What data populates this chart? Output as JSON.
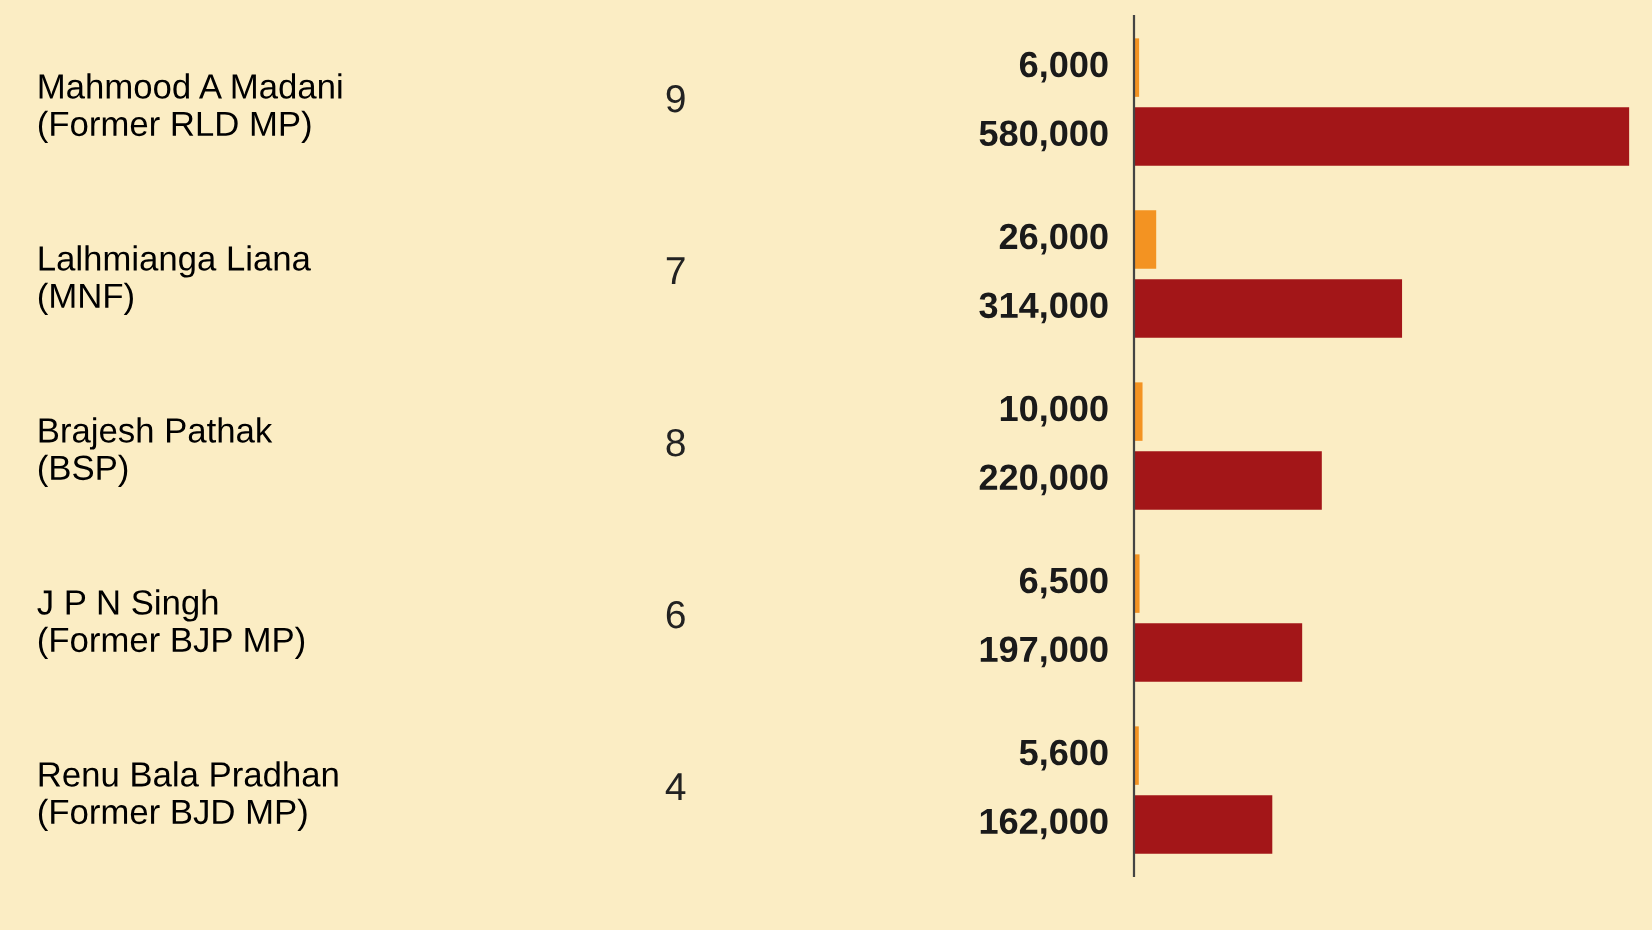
{
  "chart_data": {
    "type": "bar",
    "orientation": "horizontal",
    "categories": [
      "Mahmood A Madani\n(Former RLD MP)",
      "Lalhmianga Liana\n(MNF)",
      "Brajesh Pathak\n(BSP)",
      "J P N Singh\n(Former BJP MP)",
      "Renu Bala Pradhan\n(Former BJD MP)"
    ],
    "series": [
      {
        "color": "#f39322",
        "values": [
          6000,
          26000,
          10000,
          6500,
          5600
        ],
        "value_labels": [
          "6,000",
          "26,000",
          "10,000",
          "6,500",
          "5,600"
        ]
      },
      {
        "color": "#a31618",
        "values": [
          580000,
          314000,
          220000,
          197000,
          162000
        ],
        "value_labels": [
          "580,000",
          "314,000",
          "220,000",
          "197,000",
          "162,000"
        ]
      }
    ],
    "grid": false,
    "annotations": [
      "9",
      "7",
      "8",
      "6",
      "4"
    ]
  }
}
